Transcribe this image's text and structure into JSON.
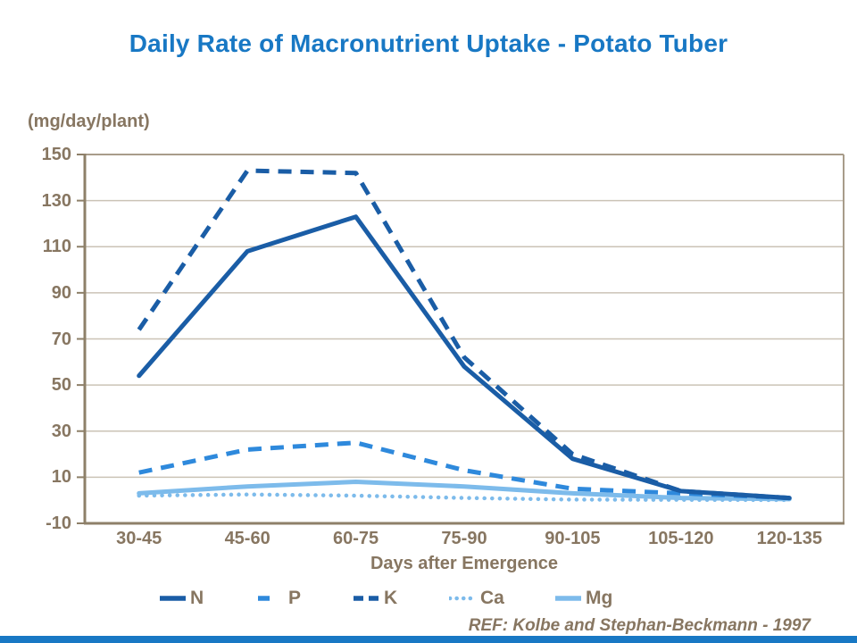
{
  "page": {
    "title": "Daily Rate of Macronutrient Uptake - Potato Tuber"
  },
  "footer": {
    "ref_text": "REF: Kolbe and Stephan-Beckmann - 1997"
  },
  "colors": {
    "title_blue": "#1878C4",
    "bottom_bar_blue": "#1878C4",
    "label_taupe": "#877661",
    "axis_line_strong": "#8E8069",
    "axis_line_light": "#A89C8A",
    "gridline": "#CBC3B6",
    "dark_blue": "#1A5DA6",
    "medium_blue": "#2E89DC",
    "light_blue": "#7DBBEB"
  },
  "chart_data": {
    "type": "line",
    "title": "Daily Rate of Macronutrient Uptake - Potato Tuber",
    "ylabel": "(mg/day/plant)",
    "xlabel": "Days after Emergence",
    "ylim": [
      -10,
      150
    ],
    "yticks": [
      150,
      130,
      110,
      90,
      70,
      50,
      30,
      10,
      -10
    ],
    "grid": true,
    "legend_position": "bottom",
    "categories": [
      "30-45",
      "45-60",
      "60-75",
      "75-90",
      "90-105",
      "105-120",
      "120-135"
    ],
    "series": [
      {
        "name": "N",
        "style": "solid",
        "color": "#1A5DA6",
        "values": [
          54,
          108,
          123,
          58,
          18,
          4,
          1
        ]
      },
      {
        "name": "P",
        "style": "dashed",
        "color": "#2E89DC",
        "values": [
          12,
          22,
          25,
          13,
          5,
          3,
          1
        ]
      },
      {
        "name": "K",
        "style": "dashed",
        "color": "#1A5DA6",
        "values": [
          74,
          143,
          142,
          62,
          20,
          4,
          1
        ]
      },
      {
        "name": "Ca",
        "style": "dotted",
        "color": "#7DBBEB",
        "values": [
          2,
          2.5,
          2,
          1,
          0.3,
          0.2,
          0.1
        ]
      },
      {
        "name": "Mg",
        "style": "solid",
        "color": "#7DBBEB",
        "values": [
          3,
          6,
          8,
          6,
          3,
          1,
          0.5
        ]
      }
    ]
  }
}
